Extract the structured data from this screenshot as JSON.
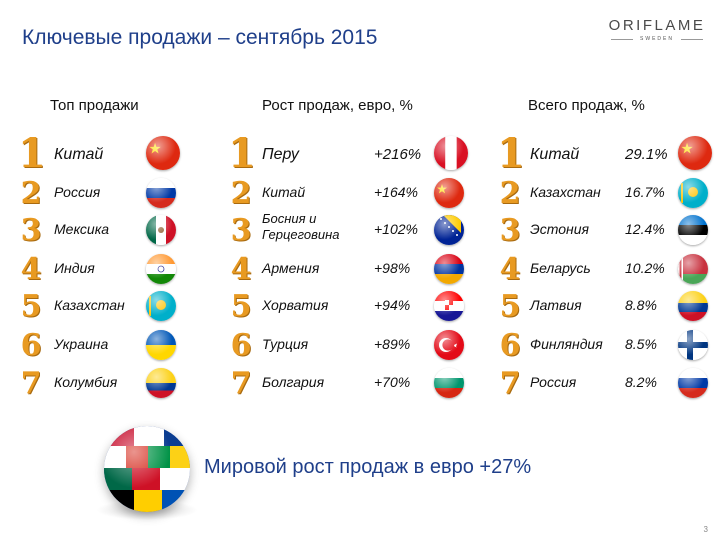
{
  "header": {
    "title": "Ключевые продажи – сентябрь 2015"
  },
  "logo": {
    "main": "ORIFLAME",
    "sub": "SWEDEN"
  },
  "columns": [
    {
      "heading": "Топ продажи",
      "rows": [
        {
          "rank": "1",
          "name": "Китай",
          "value": "",
          "flag": "china"
        },
        {
          "rank": "2",
          "name": "Россия",
          "value": "",
          "flag": "russia"
        },
        {
          "rank": "3",
          "name": "Мексика",
          "value": "",
          "flag": "mexico"
        },
        {
          "rank": "4",
          "name": "Индия",
          "value": "",
          "flag": "india"
        },
        {
          "rank": "5",
          "name": "Казахстан",
          "value": "",
          "flag": "kazakhstan"
        },
        {
          "rank": "6",
          "name": "Украина",
          "value": "",
          "flag": "ukraine"
        },
        {
          "rank": "7",
          "name": "Колумбия",
          "value": "",
          "flag": "colombia"
        }
      ]
    },
    {
      "heading": "Рост продаж, евро, %",
      "rows": [
        {
          "rank": "1",
          "name": "Перу",
          "value": "+216%",
          "flag": "peru"
        },
        {
          "rank": "2",
          "name": "Китай",
          "value": "+164%",
          "flag": "china"
        },
        {
          "rank": "3",
          "name": "Босния и Герцеговина",
          "value": "+102%",
          "flag": "bosnia"
        },
        {
          "rank": "4",
          "name": "Армения",
          "value": "+98%",
          "flag": "armenia"
        },
        {
          "rank": "5",
          "name": "Хорватия",
          "value": "+94%",
          "flag": "croatia"
        },
        {
          "rank": "6",
          "name": "Турция",
          "value": "+89%",
          "flag": "turkey"
        },
        {
          "rank": "7",
          "name": "Болгария",
          "value": "+70%",
          "flag": "bulgaria"
        }
      ]
    },
    {
      "heading": "Всего продаж, %",
      "rows": [
        {
          "rank": "1",
          "name": "Китай",
          "value": "29.1%",
          "flag": "china"
        },
        {
          "rank": "2",
          "name": "Казахстан",
          "value": "16.7%",
          "flag": "kazakhstan"
        },
        {
          "rank": "3",
          "name": "Эстония",
          "value": "12.4%",
          "flag": "estonia"
        },
        {
          "rank": "4",
          "name": "Беларусь",
          "value": "10.2%",
          "flag": "belarus"
        },
        {
          "rank": "5",
          "name": "Латвия",
          "value": "8.8%",
          "flag": "latvia"
        },
        {
          "rank": "6",
          "name": "Финляндия",
          "value": "8.5%",
          "flag": "finland"
        },
        {
          "rank": "7",
          "name": "Россия",
          "value": "8.2%",
          "flag": "russia"
        }
      ]
    }
  ],
  "footer": {
    "growth_text": "Мировой рост продаж в евро +27%",
    "page_number": "3"
  },
  "colors": {
    "accent_blue": "#1f3f8a",
    "rank_orange": "#e89a22"
  }
}
